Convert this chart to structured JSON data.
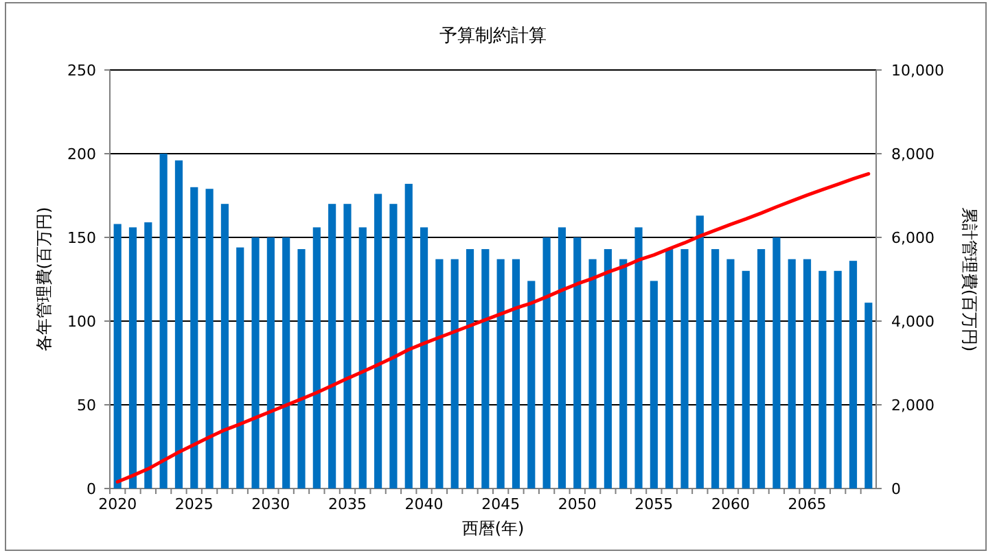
{
  "chart_data": {
    "type": "bar",
    "title": "予算制約計算",
    "xlabel": "西暦(年)",
    "ylabel": "各年管理費(百万円)",
    "y2label": "累計管理費(百万円)",
    "categories": [
      "2020",
      null,
      null,
      null,
      null,
      "2025",
      null,
      null,
      null,
      null,
      "2030",
      null,
      null,
      null,
      null,
      "2035",
      null,
      null,
      null,
      null,
      "2040",
      null,
      null,
      null,
      null,
      "2045",
      null,
      null,
      null,
      null,
      "2050",
      null,
      null,
      null,
      null,
      "2055",
      null,
      null,
      null,
      null,
      "2060",
      null,
      null,
      null,
      null,
      "2065",
      null,
      null,
      null,
      null
    ],
    "series": [
      {
        "color": "#0070c0",
        "values": [
          158,
          156,
          159,
          200,
          196,
          180,
          179,
          170,
          144,
          150,
          150,
          150,
          143,
          156,
          170,
          170,
          156,
          176,
          170,
          182,
          156,
          137,
          137,
          143,
          143,
          137,
          137,
          124,
          150,
          156,
          150,
          137,
          143,
          137,
          156,
          124,
          143,
          143,
          163,
          143,
          137,
          130,
          143,
          150,
          137,
          137,
          130,
          130,
          136,
          111
        ]
      },
      {
        "type": "line",
        "axis": "y2",
        "color": "#ff0000",
        "values": [
          160,
          310,
          470,
          670,
          870,
          1050,
          1230,
          1400,
          1540,
          1690,
          1840,
          1990,
          2140,
          2290,
          2460,
          2630,
          2790,
          2960,
          3130,
          3320,
          3470,
          3610,
          3750,
          3890,
          4030,
          4170,
          4310,
          4430,
          4580,
          4740,
          4890,
          5020,
          5170,
          5300,
          5460,
          5580,
          5730,
          5870,
          6030,
          6170,
          6310,
          6440,
          6580,
          6730,
          6870,
          7010,
          7140,
          7270,
          7400,
          7520
        ]
      }
    ],
    "ylim": [
      0,
      250
    ],
    "yticks": [
      0,
      50,
      100,
      150,
      200,
      250
    ],
    "y2lim": [
      0,
      10000
    ],
    "y2ticks": [
      0,
      {
        "value": 2000,
        "label": "2,000"
      },
      {
        "value": 4000,
        "label": "4,000"
      },
      {
        "value": 6000,
        "label": "6,000"
      },
      {
        "value": 8000,
        "label": "8,000"
      },
      {
        "value": 10000,
        "label": "10,000"
      }
    ],
    "grid": "y",
    "marker": "none",
    "line_style": "solid"
  }
}
